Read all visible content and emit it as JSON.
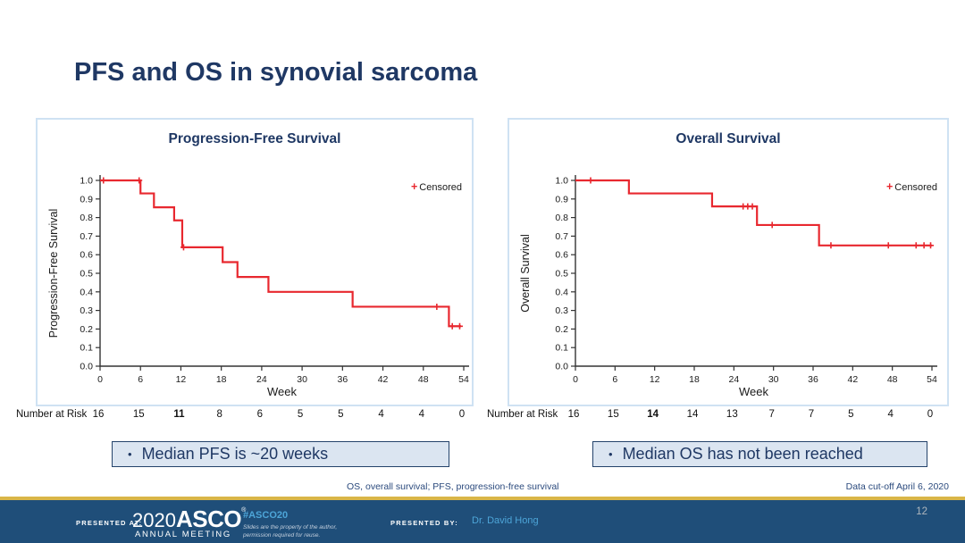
{
  "slide": {
    "title": "PFS and OS in synovial sarcoma",
    "footnote": "OS, overall survival; PFS, progression-free survival",
    "data_cutoff": "Data cut-off April 6, 2020",
    "page_number": "12"
  },
  "colors": {
    "navy": "#1f3864",
    "curve_red": "#e8282f",
    "panel_border": "#cfe2f3",
    "callout_bg": "#dbe5f1",
    "callout_border": "#24436b",
    "footer_bg": "#1f4e79",
    "gold": "#d9b648",
    "light_blue": "#4da5d8"
  },
  "callouts": {
    "bullet": "•",
    "pfs": "Median PFS is ~20 weeks",
    "os": "Median OS has not been reached"
  },
  "footer": {
    "presented_at_label": "PRESENTED AT:",
    "logo_year": "2020",
    "logo_name": "ASCO",
    "logo_sub": "ANNUAL MEETING",
    "hashtag": "#ASCO20",
    "disclaimer_line1": "Slides are the property of the author,",
    "disclaimer_line2": "permission required for reuse.",
    "presented_by_label": "PRESENTED BY:",
    "presenter": "Dr. David Hong"
  },
  "chart_data": [
    {
      "type": "line",
      "subtype": "kaplan-meier-step",
      "title": "Progression-Free Survival",
      "xlabel": "Week",
      "ylabel": "Progression-Free Survival",
      "legend_label": "Censored",
      "legend_position": "top-right",
      "grid": false,
      "xlim": [
        0,
        54
      ],
      "ylim": [
        0.0,
        1.0
      ],
      "xticks": [
        0,
        6,
        12,
        18,
        24,
        30,
        36,
        42,
        48,
        54
      ],
      "yticks": [
        0.0,
        0.1,
        0.2,
        0.3,
        0.4,
        0.5,
        0.6,
        0.7,
        0.8,
        0.9,
        1.0
      ],
      "line_color": "#e8282f",
      "series": [
        {
          "name": "PFS",
          "steps": [
            [
              0,
              1.0
            ],
            [
              6,
              0.93
            ],
            [
              8,
              0.855
            ],
            [
              11,
              0.785
            ],
            [
              12.2,
              0.64
            ],
            [
              18.2,
              0.56
            ],
            [
              20.4,
              0.48
            ],
            [
              25,
              0.4
            ],
            [
              37.5,
              0.32
            ],
            [
              51.8,
              0.215
            ]
          ],
          "end_x": 53.6,
          "censored": [
            [
              0.5,
              1.0
            ],
            [
              5.8,
              1.0
            ],
            [
              12.4,
              0.64
            ],
            [
              50,
              0.32
            ],
            [
              52.3,
              0.215
            ],
            [
              53.4,
              0.215
            ]
          ]
        }
      ],
      "number_at_risk": {
        "label": "Number at Risk",
        "values": [
          16,
          15,
          11,
          8,
          6,
          5,
          5,
          4,
          4,
          0
        ],
        "bold_indices": [
          2
        ]
      }
    },
    {
      "type": "line",
      "subtype": "kaplan-meier-step",
      "title": "Overall Survival",
      "xlabel": "Week",
      "ylabel": "Overall Survival",
      "legend_label": "Censored",
      "legend_position": "top-right",
      "grid": false,
      "xlim": [
        0,
        54
      ],
      "ylim": [
        0.0,
        1.0
      ],
      "xticks": [
        0,
        6,
        12,
        18,
        24,
        30,
        36,
        42,
        48,
        54
      ],
      "yticks": [
        0.0,
        0.1,
        0.2,
        0.3,
        0.4,
        0.5,
        0.6,
        0.7,
        0.8,
        0.9,
        1.0
      ],
      "line_color": "#e8282f",
      "series": [
        {
          "name": "OS",
          "steps": [
            [
              0,
              1.0
            ],
            [
              8.1,
              0.93
            ],
            [
              20.7,
              0.86
            ],
            [
              27.5,
              0.76
            ],
            [
              36.9,
              0.65
            ]
          ],
          "end_x": 54,
          "censored": [
            [
              2.3,
              1.0
            ],
            [
              25.4,
              0.86
            ],
            [
              26.1,
              0.86
            ],
            [
              26.8,
              0.86
            ],
            [
              29.8,
              0.76
            ],
            [
              38.7,
              0.65
            ],
            [
              47.4,
              0.65
            ],
            [
              51.6,
              0.65
            ],
            [
              52.8,
              0.65
            ],
            [
              53.8,
              0.65
            ]
          ]
        }
      ],
      "number_at_risk": {
        "label": "Number at Risk",
        "values": [
          16,
          15,
          14,
          14,
          13,
          7,
          7,
          5,
          4,
          0
        ],
        "bold_indices": [
          2
        ]
      }
    }
  ]
}
